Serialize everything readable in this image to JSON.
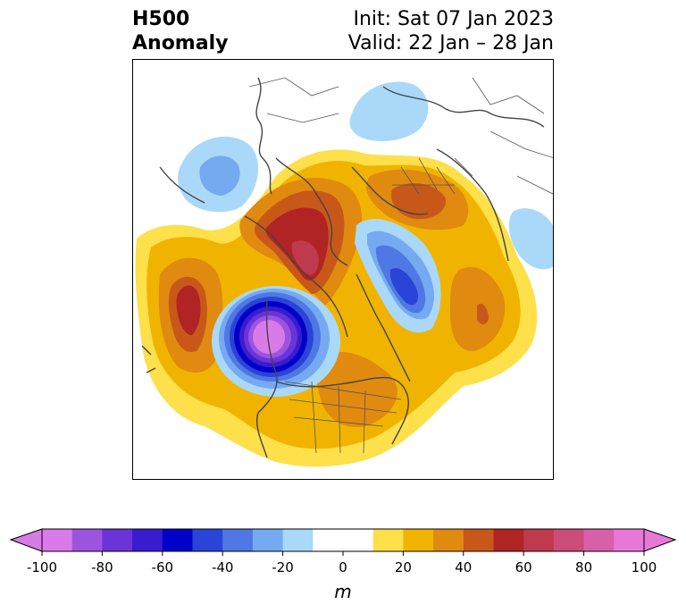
{
  "title": {
    "left_line1": "H500",
    "left_line2": "Anomaly",
    "right_line1": "Init: Sat 07 Jan 2023",
    "right_line2": "Valid: 22 Jan – 28 Jan"
  },
  "colorbar": {
    "unit": "m",
    "ticks": [
      "-100",
      "-80",
      "-60",
      "-40",
      "-20",
      "0",
      "20",
      "40",
      "60",
      "80",
      "100"
    ],
    "colors": [
      "#d87ae8",
      "#9c54e0",
      "#6a34d8",
      "#3a1cd0",
      "#0000c8",
      "#2a44d8",
      "#4f78e4",
      "#76aaf0",
      "#aad8f8",
      "#ffffff",
      "#ffffff",
      "#fde04a",
      "#f0b400",
      "#e08a10",
      "#c8581a",
      "#b02424",
      "#c03a4e",
      "#cc4c7a",
      "#d860a8",
      "#e878d8"
    ]
  },
  "map": {
    "features": [
      "height-anomaly-contours",
      "coastlines",
      "country-borders",
      "state-borders"
    ],
    "palette": {
      "yellow": "#fde04a",
      "gold": "#f0b400",
      "orange": "#e08a10",
      "rust": "#c8581a",
      "red": "#b02424",
      "crimson": "#c03a4e",
      "lightblue": "#aad8f8",
      "skyblue": "#76aaf0",
      "blue": "#4f78e4",
      "royal": "#2a44d8",
      "navy": "#0000c8",
      "indigo": "#3a1cd0",
      "violet": "#6a34d8",
      "purple": "#9c54e0",
      "magenta": "#d87ae8"
    }
  }
}
